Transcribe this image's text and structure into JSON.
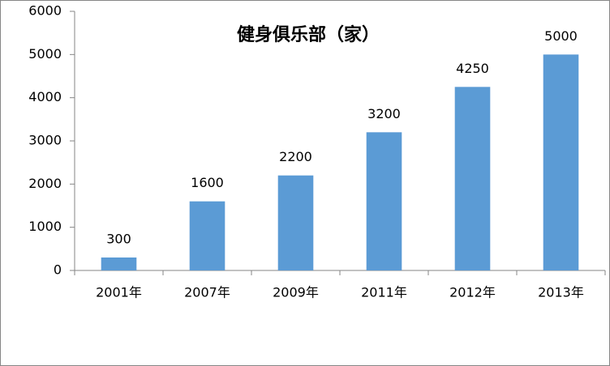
{
  "chart_data": {
    "type": "bar",
    "title": "健身俱乐部（家）",
    "categories": [
      "2001年",
      "2007年",
      "2009年",
      "2011年",
      "2012年",
      "2013年"
    ],
    "values": [
      300,
      1600,
      2200,
      3200,
      4250,
      5000
    ],
    "color": "#5b9bd5",
    "ylim": [
      0,
      6000
    ],
    "yticks": [
      0,
      1000,
      2000,
      3000,
      4000,
      5000,
      6000
    ],
    "grid": false,
    "data_labels": true
  }
}
